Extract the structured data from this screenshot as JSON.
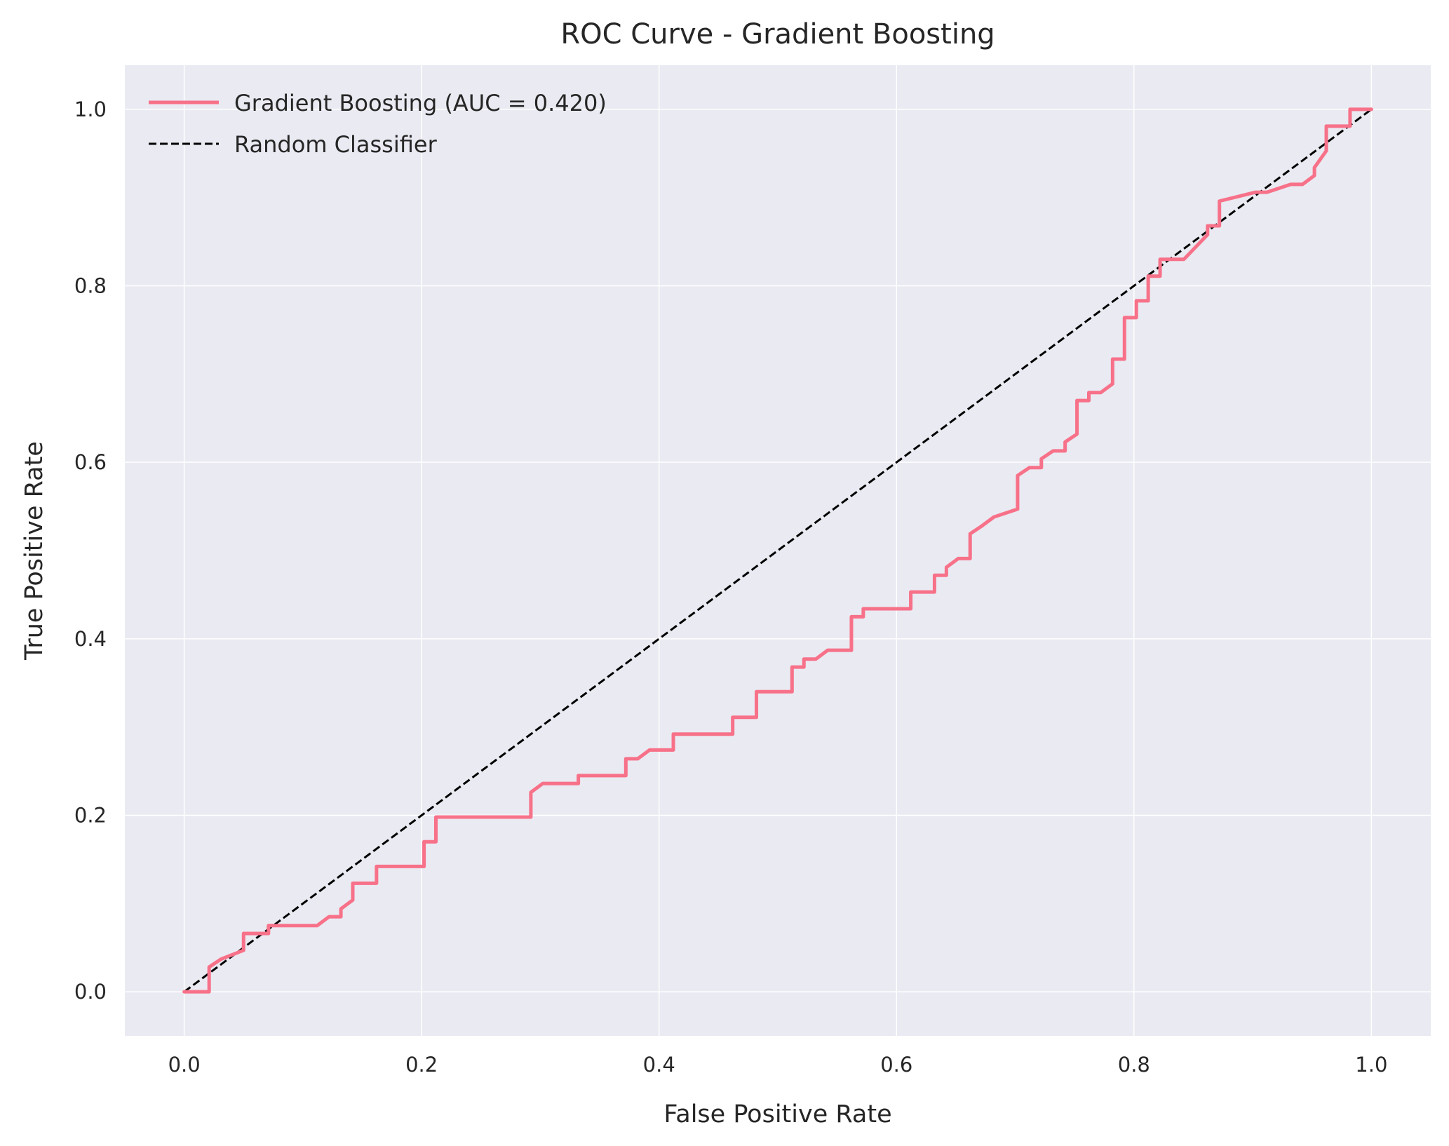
{
  "chart_data": {
    "type": "line",
    "title": "ROC Curve - Gradient Boosting",
    "xlabel": "False Positive Rate",
    "ylabel": "True Positive Rate",
    "xlim": [
      -0.05,
      1.05
    ],
    "ylim": [
      -0.05,
      1.05
    ],
    "xticks": [
      0.0,
      0.2,
      0.4,
      0.6,
      0.8,
      1.0
    ],
    "xtick_labels": [
      "0.0",
      "0.2",
      "0.4",
      "0.6",
      "0.8",
      "1.0"
    ],
    "yticks": [
      0.0,
      0.2,
      0.4,
      0.6,
      0.8,
      1.0
    ],
    "ytick_labels": [
      "0.0",
      "0.2",
      "0.4",
      "0.6",
      "0.8",
      "1.0"
    ],
    "grid": true,
    "legend_position": "top-left",
    "colors": {
      "plot_background": "#eaeaf2",
      "grid": "#ffffff",
      "gb_curve": "#f77189",
      "random_line": "#000000",
      "text": "#262626"
    },
    "series": [
      {
        "name": "Gradient Boosting (AUC = 0.420)",
        "style": "solid",
        "x": [
          0.0,
          0.021,
          0.021,
          0.031,
          0.05,
          0.05,
          0.071,
          0.071,
          0.112,
          0.122,
          0.132,
          0.132,
          0.142,
          0.142,
          0.162,
          0.162,
          0.202,
          0.202,
          0.212,
          0.212,
          0.292,
          0.292,
          0.302,
          0.332,
          0.332,
          0.372,
          0.372,
          0.382,
          0.392,
          0.412,
          0.412,
          0.462,
          0.462,
          0.482,
          0.482,
          0.512,
          0.512,
          0.522,
          0.522,
          0.532,
          0.542,
          0.562,
          0.562,
          0.572,
          0.572,
          0.612,
          0.612,
          0.632,
          0.632,
          0.642,
          0.642,
          0.652,
          0.662,
          0.662,
          0.672,
          0.682,
          0.702,
          0.702,
          0.712,
          0.722,
          0.722,
          0.732,
          0.742,
          0.742,
          0.752,
          0.752,
          0.762,
          0.762,
          0.772,
          0.782,
          0.782,
          0.792,
          0.792,
          0.802,
          0.802,
          0.812,
          0.812,
          0.822,
          0.822,
          0.832,
          0.842,
          0.862,
          0.862,
          0.872,
          0.872,
          0.902,
          0.912,
          0.932,
          0.942,
          0.952,
          0.952,
          0.962,
          0.962,
          0.972,
          0.982,
          0.982,
          0.992,
          1.0
        ],
        "y": [
          0.0,
          0.0,
          0.028,
          0.037,
          0.047,
          0.066,
          0.066,
          0.075,
          0.075,
          0.085,
          0.085,
          0.094,
          0.104,
          0.123,
          0.123,
          0.142,
          0.142,
          0.17,
          0.17,
          0.198,
          0.198,
          0.226,
          0.236,
          0.236,
          0.245,
          0.245,
          0.264,
          0.264,
          0.274,
          0.274,
          0.292,
          0.292,
          0.311,
          0.311,
          0.34,
          0.34,
          0.368,
          0.368,
          0.377,
          0.377,
          0.387,
          0.387,
          0.425,
          0.425,
          0.434,
          0.434,
          0.453,
          0.453,
          0.472,
          0.472,
          0.481,
          0.491,
          0.491,
          0.519,
          0.528,
          0.538,
          0.547,
          0.585,
          0.594,
          0.594,
          0.604,
          0.613,
          0.613,
          0.623,
          0.632,
          0.67,
          0.67,
          0.679,
          0.679,
          0.689,
          0.717,
          0.717,
          0.764,
          0.764,
          0.783,
          0.783,
          0.811,
          0.811,
          0.83,
          0.83,
          0.83,
          0.858,
          0.868,
          0.868,
          0.896,
          0.906,
          0.906,
          0.915,
          0.915,
          0.925,
          0.934,
          0.953,
          0.981,
          0.981,
          0.981,
          1.0,
          1.0,
          1.0
        ]
      },
      {
        "name": "Random Classifier",
        "style": "dashed",
        "x": [
          0.0,
          1.0
        ],
        "y": [
          0.0,
          1.0
        ]
      }
    ]
  }
}
